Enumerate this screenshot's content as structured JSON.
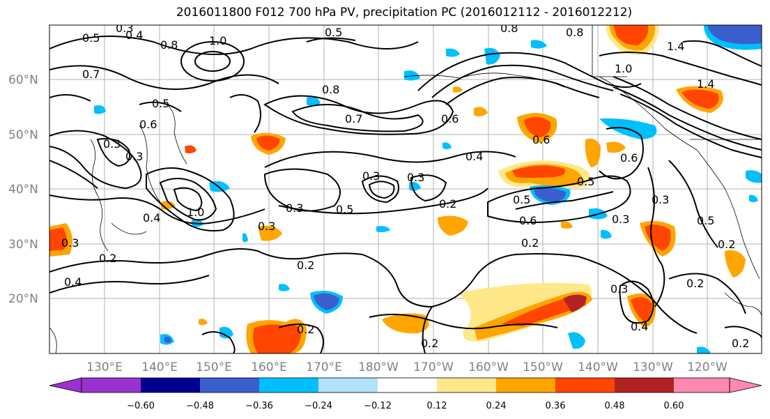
{
  "title": "2016011800 F012 700 hPa PV, precipitation PC (2016012112 - 2016012212)",
  "map": {
    "lat_labels": [
      "60°N",
      "50°N",
      "40°N",
      "30°N",
      "20°N"
    ],
    "lon_labels": [
      "130°E",
      "140°E",
      "150°E",
      "160°E",
      "170°E",
      "180°W",
      "170°W",
      "160°W",
      "150°W",
      "140°W",
      "130°W",
      "120°W"
    ],
    "contour_labels": [
      "0.3",
      "0.4",
      "0.5",
      "0.8",
      "1.0",
      "0.5",
      "0.8",
      "0.8",
      "0.6",
      "0.5",
      "0.3",
      "0.7",
      "0.6",
      "0.8",
      "1.0",
      "1.4",
      "1.4",
      "0.7",
      "0.6",
      "0.4",
      "0.5",
      "0.6",
      "0.3",
      "0.3",
      "0.2",
      "0.5",
      "0.5",
      "0.6",
      "0.3",
      "1.0",
      "0.4",
      "0.3",
      "0.3",
      "0.2",
      "0.2",
      "0.2",
      "0.3",
      "0.2",
      "0.4",
      "0.2",
      "0.2",
      "0.2",
      "0.3",
      "0.5",
      "0.3",
      "0.2",
      "0.4",
      "0.3"
    ],
    "colors": {
      "grid": "#b0b0b0",
      "contour": "#000000",
      "land": "#000000"
    }
  },
  "colorbar": {
    "ticks": [
      "−0.60",
      "−0.48",
      "−0.36",
      "−0.24",
      "−0.12",
      "0.12",
      "0.24",
      "0.36",
      "0.48",
      "0.60"
    ],
    "colors": [
      "#9932cc",
      "#00008b",
      "#3a5fcd",
      "#00bfff",
      "#b2e2fa",
      "#ffffff",
      "#ffe88a",
      "#ffa500",
      "#ff4500",
      "#b22222",
      "#ff88b0"
    ]
  }
}
